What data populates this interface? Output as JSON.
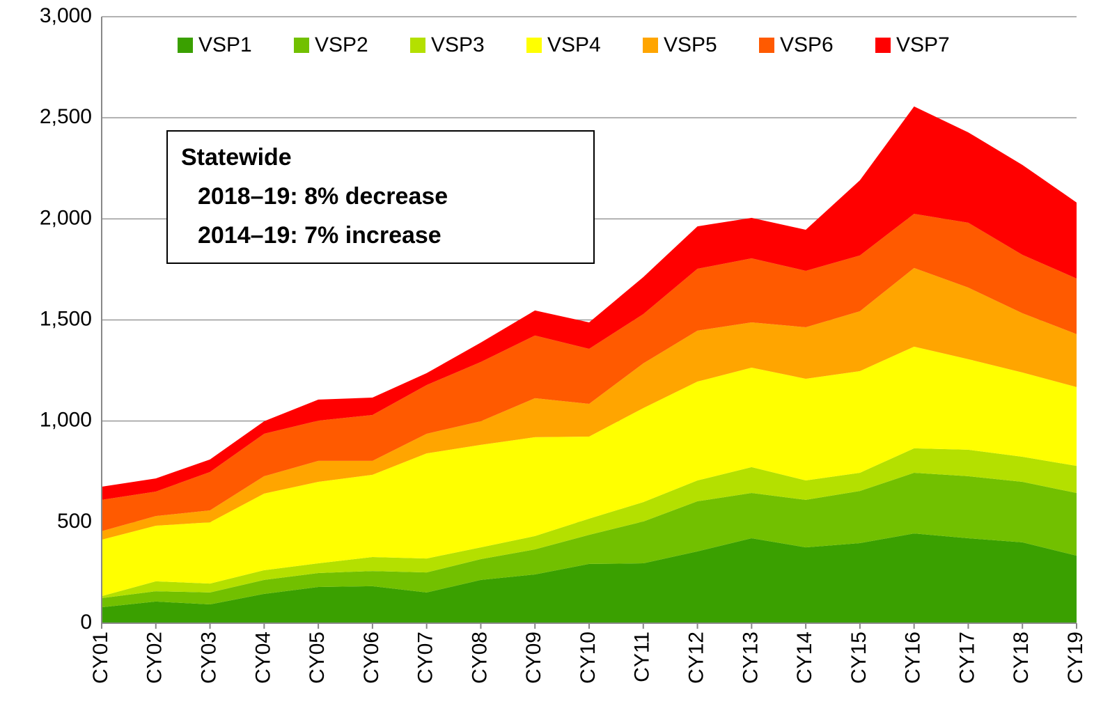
{
  "chart_data": {
    "type": "stacked_area",
    "categories": [
      "CY01",
      "CY02",
      "CY03",
      "CY04",
      "CY05",
      "CY06",
      "CY07",
      "CY08",
      "CY09",
      "CY10",
      "CY11",
      "CY12",
      "CY13",
      "CY14",
      "CY15",
      "CY16",
      "CY17",
      "CY18",
      "CY19"
    ],
    "series": [
      {
        "name": "VSP1",
        "color": "#3aa000",
        "values": [
          79,
          107,
          93,
          145,
          179,
          183,
          152,
          214,
          241,
          293,
          296,
          355,
          420,
          375,
          396,
          444,
          420,
          400,
          334
        ]
      },
      {
        "name": "VSP2",
        "color": "#72c000",
        "values": [
          45,
          51,
          59,
          69,
          69,
          75,
          99,
          103,
          124,
          144,
          207,
          248,
          224,
          235,
          258,
          300,
          307,
          299,
          310
        ]
      },
      {
        "name": "VSP3",
        "color": "#b4e000",
        "values": [
          10,
          49,
          44,
          48,
          48,
          69,
          69,
          58,
          66,
          80,
          96,
          103,
          128,
          96,
          90,
          121,
          131,
          124,
          134
        ]
      },
      {
        "name": "VSP4",
        "color": "#ffff00",
        "values": [
          279,
          275,
          303,
          379,
          403,
          407,
          520,
          507,
          489,
          406,
          465,
          489,
          492,
          503,
          503,
          503,
          448,
          417,
          390
        ]
      },
      {
        "name": "VSP5",
        "color": "#ffa500",
        "values": [
          42,
          48,
          59,
          86,
          104,
          69,
          97,
          117,
          193,
          162,
          221,
          252,
          224,
          255,
          296,
          389,
          354,
          293,
          262
        ]
      },
      {
        "name": "VSP6",
        "color": "#ff5a00",
        "values": [
          155,
          121,
          190,
          210,
          199,
          227,
          241,
          293,
          310,
          272,
          244,
          306,
          317,
          279,
          276,
          268,
          321,
          289,
          275
        ]
      },
      {
        "name": "VSP7",
        "color": "#ff0000",
        "values": [
          65,
          65,
          62,
          62,
          104,
          86,
          59,
          96,
          124,
          131,
          183,
          210,
          200,
          203,
          372,
          531,
          447,
          445,
          376
        ]
      }
    ],
    "ylim": [
      0,
      3000
    ],
    "yticks": [
      0,
      500,
      {
        "value": 1000,
        "label": "1,000"
      },
      {
        "value": 1500,
        "label": "1,500"
      },
      {
        "value": 2000,
        "label": "2,000"
      },
      {
        "value": 2500,
        "label": "2,500"
      },
      {
        "value": 3000,
        "label": "3,000"
      }
    ],
    "grid": true,
    "legend": "top",
    "annotation": {
      "title": "Statewide",
      "lines": [
        "2018–19: 8% decrease",
        "2014–19: 7% increase"
      ]
    }
  }
}
